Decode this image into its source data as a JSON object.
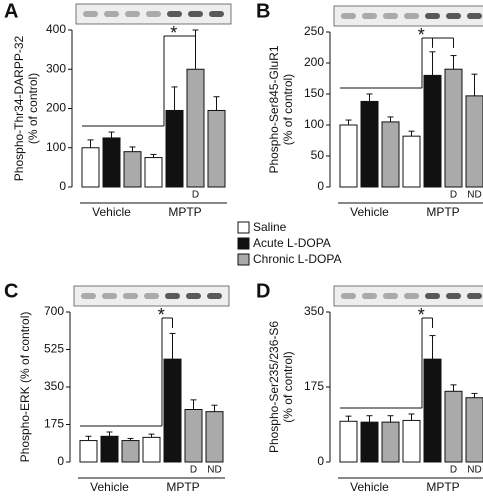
{
  "chart_data": [
    {
      "type": "bar",
      "panel": "A",
      "ylabel": [
        "Phospho-Thr34-DARPP-32",
        "(% of control)"
      ],
      "categories": [
        null,
        null,
        null,
        null,
        null,
        "D",
        null
      ],
      "values": [
        100,
        125,
        90,
        75,
        195,
        300,
        195
      ],
      "errors": [
        20,
        15,
        12,
        8,
        60,
        100,
        35
      ],
      "colors": [
        "#ffffff",
        "#111111",
        "#aaaaaa",
        "#ffffff",
        "#111111",
        "#aaaaaa",
        "#aaaaaa"
      ],
      "groups": [
        "Vehicle",
        "MPTP"
      ],
      "annotation": "*",
      "ylim": [
        0,
        400
      ],
      "yticks": [
        0,
        100,
        200,
        300,
        400
      ]
    },
    {
      "type": "bar",
      "panel": "B",
      "ylabel": [
        "Phospho-Ser845-GluR1",
        "(% of control)"
      ],
      "categories": [
        null,
        null,
        null,
        null,
        null,
        "D",
        "ND"
      ],
      "values": [
        100,
        138,
        105,
        82,
        180,
        190,
        147
      ],
      "errors": [
        8,
        12,
        8,
        8,
        38,
        22,
        35
      ],
      "colors": [
        "#ffffff",
        "#111111",
        "#aaaaaa",
        "#ffffff",
        "#111111",
        "#aaaaaa",
        "#aaaaaa"
      ],
      "groups": [
        "Vehicle",
        "MPTP"
      ],
      "annotation": "*",
      "ylim": [
        0,
        250
      ],
      "yticks": [
        0,
        50,
        100,
        150,
        200,
        250
      ]
    },
    {
      "type": "bar",
      "panel": "C",
      "ylabel": [
        "Phospho-ERK (% of control)"
      ],
      "categories": [
        null,
        null,
        null,
        null,
        null,
        "D",
        "ND"
      ],
      "values": [
        100,
        120,
        100,
        115,
        480,
        245,
        235
      ],
      "errors": [
        20,
        20,
        10,
        15,
        120,
        45,
        30
      ],
      "colors": [
        "#ffffff",
        "#111111",
        "#aaaaaa",
        "#ffffff",
        "#111111",
        "#aaaaaa",
        "#aaaaaa"
      ],
      "groups": [
        "Vehicle",
        "MPTP"
      ],
      "annotation": "*",
      "ylim": [
        0,
        700
      ],
      "yticks": [
        0,
        175,
        350,
        525,
        700
      ]
    },
    {
      "type": "bar",
      "panel": "D",
      "ylabel": [
        "Phospho-Ser235/236-S6",
        "(% of control)"
      ],
      "categories": [
        null,
        null,
        null,
        null,
        null,
        "D",
        "ND"
      ],
      "values": [
        95,
        93,
        93,
        97,
        240,
        165,
        150
      ],
      "errors": [
        12,
        15,
        15,
        15,
        55,
        15,
        10
      ],
      "colors": [
        "#ffffff",
        "#111111",
        "#aaaaaa",
        "#ffffff",
        "#111111",
        "#aaaaaa",
        "#aaaaaa"
      ],
      "groups": [
        "Vehicle",
        "MPTP"
      ],
      "annotation": "*",
      "ylim": [
        0,
        350
      ],
      "yticks": [
        0,
        175,
        350
      ]
    }
  ],
  "legend": {
    "labels": [
      "Saline",
      "Acute L-DOPA",
      "Chronic L-DOPA"
    ],
    "colors": [
      "#ffffff",
      "#111111",
      "#aaaaaa"
    ]
  }
}
